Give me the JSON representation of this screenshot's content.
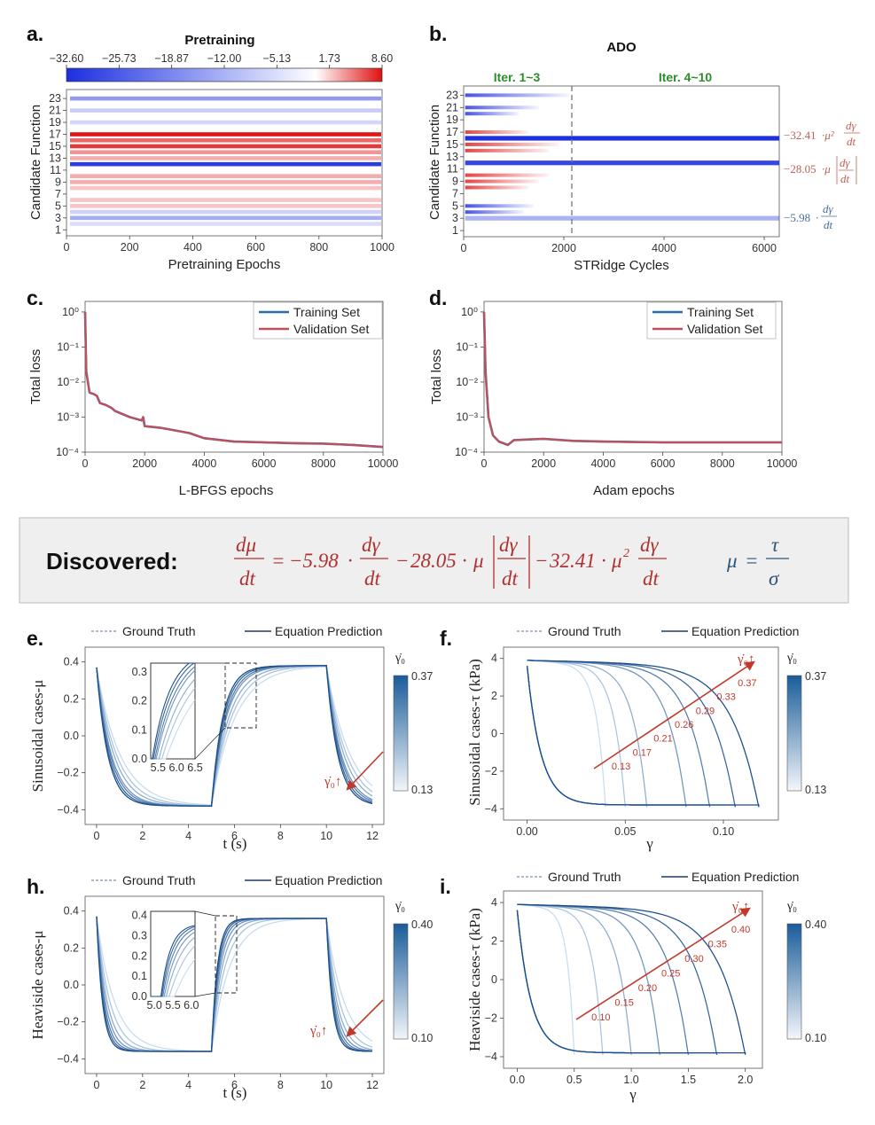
{
  "panels": {
    "a": {
      "label": "a.",
      "title": "Pretraining",
      "xlabel": "Pretraining Epochs",
      "ylabel": "Candidate Function",
      "colorbar_ticks": [
        "−32.60",
        "−25.73",
        "−18.87",
        "−12.00",
        "−5.13",
        "1.73",
        "8.60"
      ],
      "xticks": [
        "0",
        "200",
        "400",
        "600",
        "800",
        "1000"
      ],
      "yticks": [
        "23",
        "21",
        "19",
        "17",
        "15",
        "13",
        "11",
        "9",
        "7",
        "5",
        "3",
        "1"
      ]
    },
    "b": {
      "label": "b.",
      "title": "ADO",
      "xlabel": "STRidge Cycles",
      "ylabel": "Candidate Function",
      "iter1": "Iter. 1~3",
      "iter2": "Iter. 4~10",
      "xticks": [
        "0",
        "2000",
        "4000",
        "6000"
      ],
      "yticks": [
        "23",
        "21",
        "19",
        "17",
        "15",
        "13",
        "11",
        "9",
        "7",
        "5",
        "3",
        "1"
      ],
      "term_coefs": [
        "−32.41",
        "−28.05",
        "−5.98"
      ]
    },
    "c": {
      "label": "c.",
      "xlabel": "L-BFGS epochs",
      "ylabel": "Total loss",
      "xticks": [
        "0",
        "2000",
        "4000",
        "6000",
        "8000",
        "10000"
      ],
      "legend": [
        "Training Set",
        "Validation Set"
      ]
    },
    "d": {
      "label": "d.",
      "xlabel": "Adam epochs",
      "ylabel": "Total loss",
      "xticks": [
        "0",
        "2000",
        "4000",
        "6000",
        "8000",
        "10000"
      ],
      "legend": [
        "Training Set",
        "Validation Set"
      ]
    },
    "e": {
      "label": "e.",
      "ylabel": "Sinusoidal cases-μ",
      "xlabel": "t (s)",
      "xticks": [
        "0",
        "2",
        "4",
        "6",
        "8",
        "10",
        "12"
      ],
      "yticks": [
        "0.4",
        "0.2",
        "0.0",
        "−0.2",
        "−0.4"
      ],
      "inset_xticks": [
        "5.5",
        "6.0",
        "6.5"
      ],
      "inset_yticks": [
        "0.3",
        "0.2",
        "0.1",
        "0.0"
      ],
      "arrow_label": "γ̇₀↑",
      "colorbar": {
        "symbol": "γ̇₀",
        "max": "0.37",
        "min": "0.13"
      }
    },
    "f": {
      "label": "f.",
      "ylabel": "Sinusoidal cases-τ (kPa)",
      "xlabel": "γ",
      "xticks": [
        "0.00",
        "0.05",
        "0.10"
      ],
      "yticks": [
        "4",
        "2",
        "0",
        "−2",
        "−4"
      ],
      "arrow_label": "γ̇₀↑",
      "rates": [
        "0.13",
        "0.17",
        "0.21",
        "0.26",
        "0.29",
        "0.33",
        "0.37"
      ],
      "colorbar": {
        "symbol": "γ̇₀",
        "max": "0.37",
        "min": "0.13"
      }
    },
    "h": {
      "label": "h.",
      "ylabel": "Heaviside cases-μ",
      "xlabel": "t (s)",
      "xticks": [
        "0",
        "2",
        "4",
        "6",
        "8",
        "10",
        "12"
      ],
      "yticks": [
        "0.4",
        "0.2",
        "0.0",
        "−0.2",
        "−0.4"
      ],
      "inset_xticks": [
        "5.0",
        "5.5",
        "6.0"
      ],
      "inset_yticks": [
        "0.4",
        "0.3",
        "0.2",
        "0.1",
        "0.0"
      ],
      "arrow_label": "γ̇₀↑",
      "colorbar": {
        "symbol": "γ̇₀",
        "max": "0.40",
        "min": "0.10"
      }
    },
    "i": {
      "label": "i.",
      "ylabel": "Heaviside cases-τ (kPa)",
      "xlabel": "γ",
      "xticks": [
        "0.0",
        "0.5",
        "1.0",
        "1.5",
        "2.0"
      ],
      "yticks": [
        "4",
        "2",
        "0",
        "−2",
        "−4"
      ],
      "arrow_label": "γ̇₀↑",
      "rates": [
        "0.10",
        "0.15",
        "0.20",
        "0.25",
        "0.30",
        "0.35",
        "0.40"
      ],
      "colorbar": {
        "symbol": "γ̇₀",
        "max": "0.40",
        "min": "0.10"
      }
    }
  },
  "legend_ef": [
    "Ground Truth",
    "Equation Prediction"
  ],
  "discovered": {
    "label": "Discovered:",
    "coef1": "−5.98",
    "coef2": "28.05",
    "coef3": "32.41"
  },
  "chart_data": [
    {
      "id": "a",
      "type": "heatmap",
      "title": "Pretraining",
      "xlabel": "Pretraining Epochs",
      "ylabel": "Candidate Function",
      "xlim": [
        0,
        1000
      ],
      "rows": [
        1,
        23
      ],
      "colorbar_range": [
        -32.6,
        8.6
      ],
      "row_final_values": {
        "23": -14,
        "21": -4,
        "19": -2,
        "17": 8.6,
        "16": 5,
        "15": 7,
        "14": 3,
        "13": 2,
        "12": -32,
        "10": 2,
        "9": 2,
        "8": 1,
        "6": 1,
        "5": 1,
        "4": -3,
        "3": -10,
        "2": -1
      }
    },
    {
      "id": "b",
      "type": "heatmap",
      "title": "ADO",
      "xlabel": "STRidge Cycles",
      "ylabel": "Candidate Function",
      "xlim": [
        0,
        6300
      ],
      "iteration_boundary": 2150,
      "surviving_terms": [
        {
          "row": 16,
          "coef": -32.41
        },
        {
          "row": 12,
          "coef": -28.05
        },
        {
          "row": 3,
          "coef": -5.98
        }
      ]
    },
    {
      "id": "c",
      "type": "line",
      "xlabel": "L-BFGS epochs",
      "ylabel": "Total loss",
      "yscale": "log",
      "xlim": [
        0,
        10000
      ],
      "ylim": [
        0.0001,
        2
      ],
      "series": [
        {
          "name": "Training Set",
          "x": [
            0,
            40,
            150,
            300,
            400,
            500,
            700,
            900,
            1000,
            1500,
            1900,
            1950,
            2000,
            2500,
            3000,
            3500,
            4000,
            5000,
            6000,
            7000,
            8000,
            9000,
            10000
          ],
          "y": [
            1,
            0.02,
            0.005,
            0.0045,
            0.004,
            0.0025,
            0.0022,
            0.0018,
            0.0015,
            0.001,
            0.0008,
            0.001,
            0.00055,
            0.0005,
            0.00042,
            0.00035,
            0.00025,
            0.0002,
            0.00019,
            0.00018,
            0.000175,
            0.00016,
            0.00014
          ]
        },
        {
          "name": "Validation Set",
          "x": [
            0,
            40,
            150,
            300,
            400,
            500,
            700,
            900,
            1000,
            1500,
            1900,
            1950,
            2000,
            2500,
            3000,
            3500,
            4000,
            5000,
            6000,
            7000,
            8000,
            9000,
            10000
          ],
          "y": [
            1,
            0.02,
            0.005,
            0.0045,
            0.004,
            0.0025,
            0.0022,
            0.0018,
            0.0015,
            0.001,
            0.0008,
            0.001,
            0.00055,
            0.0005,
            0.00042,
            0.00035,
            0.00025,
            0.0002,
            0.00019,
            0.00018,
            0.000175,
            0.00016,
            0.00014
          ]
        }
      ]
    },
    {
      "id": "d",
      "type": "line",
      "xlabel": "Adam epochs",
      "ylabel": "Total loss",
      "yscale": "log",
      "xlim": [
        0,
        10000
      ],
      "ylim": [
        0.0001,
        2
      ],
      "series": [
        {
          "name": "Training Set",
          "x": [
            0,
            50,
            150,
            300,
            500,
            800,
            1000,
            1500,
            2000,
            3000,
            4000,
            6000,
            8000,
            10000
          ],
          "y": [
            1,
            0.02,
            0.001,
            0.0003,
            0.0002,
            0.00016,
            0.00022,
            0.00023,
            0.00024,
            0.00021,
            0.0002,
            0.00019,
            0.00019,
            0.00019
          ]
        },
        {
          "name": "Validation Set",
          "x": [
            0,
            50,
            150,
            300,
            500,
            800,
            1000,
            1500,
            2000,
            3000,
            4000,
            6000,
            8000,
            10000
          ],
          "y": [
            1,
            0.02,
            0.001,
            0.0003,
            0.0002,
            0.00016,
            0.00022,
            0.00023,
            0.00024,
            0.00021,
            0.0002,
            0.00019,
            0.00019,
            0.00019
          ]
        }
      ]
    },
    {
      "id": "e",
      "type": "line",
      "xlabel": "t (s)",
      "ylabel": "Sinusoidal cases-μ",
      "xlim": [
        -0.5,
        12.5
      ],
      "ylim": [
        -0.48,
        0.48
      ],
      "rates": [
        0.13,
        0.17,
        0.21,
        0.26,
        0.29,
        0.33,
        0.37
      ],
      "switch_times": [
        0,
        5,
        10
      ],
      "plateau": 0.38
    },
    {
      "id": "f",
      "type": "line",
      "xlabel": "γ",
      "ylabel": "Sinusoidal cases-τ (kPa)",
      "xlim": [
        -0.012,
        0.128
      ],
      "ylim": [
        -4.6,
        4.6
      ],
      "rates": [
        0.13,
        0.17,
        0.21,
        0.26,
        0.29,
        0.33,
        0.37
      ],
      "gamma_max": [
        0.04,
        0.05,
        0.061,
        0.081,
        0.093,
        0.106,
        0.118
      ]
    },
    {
      "id": "h",
      "type": "line",
      "xlabel": "t (s)",
      "ylabel": "Heaviside cases-μ",
      "xlim": [
        -0.5,
        12.5
      ],
      "ylim": [
        -0.48,
        0.48
      ],
      "rates": [
        0.1,
        0.15,
        0.2,
        0.25,
        0.3,
        0.35,
        0.4
      ],
      "switch_times": [
        0,
        5,
        10
      ],
      "plateau": 0.36
    },
    {
      "id": "i",
      "type": "line",
      "xlabel": "γ",
      "ylabel": "Heaviside cases-τ (kPa)",
      "xlim": [
        -0.12,
        2.15
      ],
      "ylim": [
        -4.6,
        4.6
      ],
      "rates": [
        0.1,
        0.15,
        0.2,
        0.25,
        0.3,
        0.35,
        0.4
      ],
      "gamma_max": [
        0.5,
        0.75,
        1.0,
        1.25,
        1.5,
        1.75,
        2.0
      ]
    }
  ]
}
